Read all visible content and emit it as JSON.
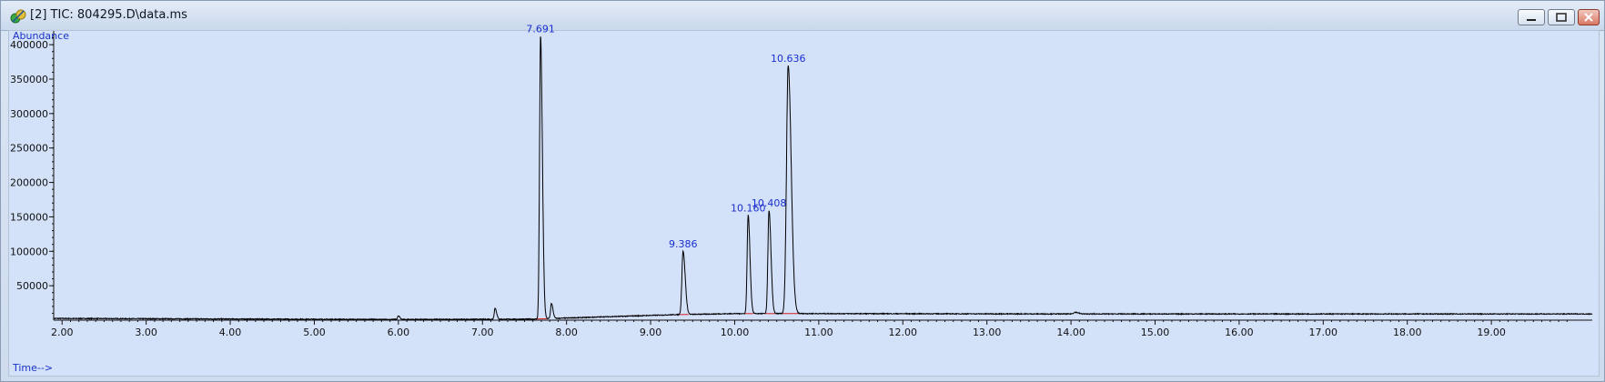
{
  "window": {
    "title": "[2] TIC: 804295.D\\data.ms"
  },
  "colors": {
    "plot_background": "#d3e1f9",
    "trace": "#000000",
    "baseline": "#d62020",
    "axis_title": "#1a33c8",
    "peak_label": "#1a2fd0"
  },
  "chart_data": {
    "type": "line",
    "ylabel": "Abundance",
    "xlabel": "Time-->",
    "xlim": [
      1.9,
      20.2
    ],
    "ylim": [
      0,
      420000
    ],
    "x_ticks": [
      "2.00",
      "3.00",
      "4.00",
      "5.00",
      "6.00",
      "7.00",
      "8.00",
      "9.00",
      "10.00",
      "11.00",
      "12.00",
      "13.00",
      "14.00",
      "15.00",
      "16.00",
      "17.00",
      "18.00",
      "19.00"
    ],
    "y_ticks": [
      "50000",
      "100000",
      "150000",
      "200000",
      "250000",
      "300000",
      "350000",
      "400000"
    ],
    "baseline_points": [
      [
        1.9,
        2500
      ],
      [
        6.0,
        1000
      ],
      [
        7.6,
        1500
      ],
      [
        8.5,
        5000
      ],
      [
        9.3,
        8000
      ],
      [
        10.0,
        9500
      ],
      [
        11.0,
        9500
      ],
      [
        14.0,
        9000
      ],
      [
        17.0,
        9000
      ],
      [
        20.2,
        9000
      ]
    ],
    "peaks": [
      {
        "label": "7.691",
        "rt": 7.691,
        "height": 411000,
        "width": 0.012
      },
      {
        "label": "9.386",
        "rt": 9.386,
        "height": 92000,
        "width": 0.014
      },
      {
        "label": "10.160",
        "rt": 10.16,
        "height": 143000,
        "width": 0.012
      },
      {
        "label": "10.408",
        "rt": 10.408,
        "height": 150000,
        "width": 0.013
      },
      {
        "label": "10.636",
        "rt": 10.636,
        "height": 360000,
        "width": 0.02
      }
    ],
    "minor_peaks": [
      {
        "rt": 7.15,
        "height": 16000,
        "width": 0.01
      },
      {
        "rt": 7.82,
        "height": 22000,
        "width": 0.01
      },
      {
        "rt": 6.0,
        "height": 5000,
        "width": 0.01
      },
      {
        "rt": 14.05,
        "height": 2500,
        "width": 0.02
      }
    ]
  }
}
